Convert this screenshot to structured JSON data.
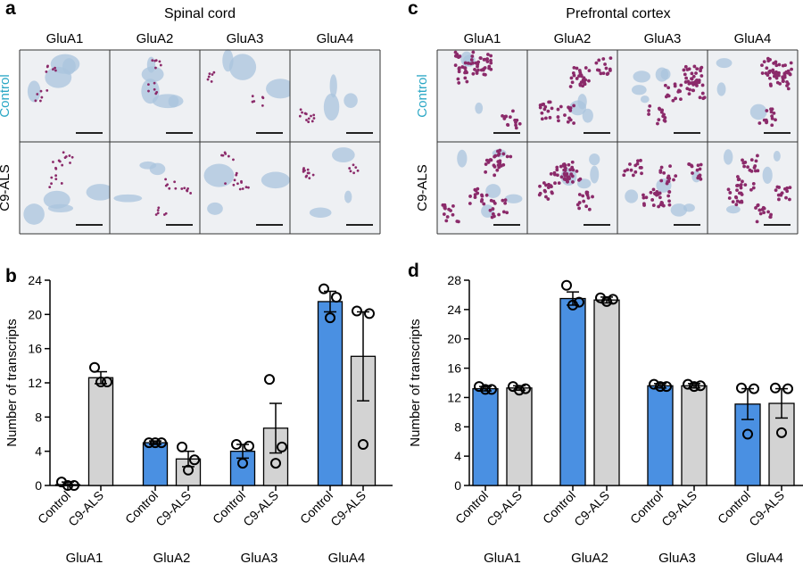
{
  "panels": {
    "a": {
      "letter": "a",
      "title": "Spinal cord",
      "columns": [
        "GluA1",
        "GluA2",
        "GluA3",
        "GluA4"
      ],
      "rows": [
        {
          "label": "Control",
          "color": "#2aa7c5"
        },
        {
          "label": "C9-ALS",
          "color": "#000000"
        }
      ]
    },
    "c": {
      "letter": "c",
      "title": "Prefrontal cortex",
      "columns": [
        "GluA1",
        "GluA2",
        "GluA3",
        "GluA4"
      ],
      "rows": [
        {
          "label": "Control",
          "color": "#2aa7c5"
        },
        {
          "label": "C9-ALS",
          "color": "#000000"
        }
      ]
    },
    "b": {
      "letter": "b"
    },
    "d": {
      "letter": "d"
    }
  },
  "colors": {
    "control_bar": "#4a90e2",
    "c9_bar": "#d3d3d3",
    "tissue_bg": "#eef0f3",
    "nucleus": "#a9c4dd",
    "rna_dot": "#8b2a6a",
    "grid_border": "#333333"
  },
  "chart_data": [
    {
      "id": "b",
      "type": "bar",
      "title": "",
      "ylabel": "Number of transcripts",
      "ylim": [
        0,
        24
      ],
      "yticks": [
        0,
        4,
        8,
        12,
        16,
        20,
        24
      ],
      "categories": [
        "GluA1",
        "GluA2",
        "GluA3",
        "GluA4"
      ],
      "conditions": [
        "Control",
        "C9-ALS"
      ],
      "series": [
        {
          "name": "Control",
          "values": [
            0.1,
            5.0,
            4.0,
            21.5
          ],
          "sem": [
            0.3,
            0.2,
            0.8,
            1.2
          ],
          "points": [
            [
              0.4,
              0.0,
              0.0
            ],
            [
              5.0,
              5.0,
              5.0
            ],
            [
              4.8,
              4.6,
              2.6
            ],
            [
              23.0,
              22.0,
              19.6
            ]
          ]
        },
        {
          "name": "C9-ALS",
          "values": [
            12.6,
            3.1,
            6.7,
            15.1
          ],
          "sem": [
            0.7,
            0.9,
            2.9,
            5.2
          ],
          "points": [
            [
              13.8,
              12.1,
              12.1
            ],
            [
              4.5,
              3.0,
              1.8
            ],
            [
              12.4,
              4.5,
              2.6
            ],
            [
              20.4,
              20.1,
              4.8
            ]
          ]
        }
      ]
    },
    {
      "id": "d",
      "type": "bar",
      "title": "",
      "ylabel": "Number of transcripts",
      "ylim": [
        0,
        28
      ],
      "yticks": [
        0,
        4,
        8,
        12,
        16,
        20,
        24,
        28
      ],
      "categories": [
        "GluA1",
        "GluA2",
        "GluA3",
        "GluA4"
      ],
      "conditions": [
        "Control",
        "C9-ALS"
      ],
      "series": [
        {
          "name": "Control",
          "values": [
            13.2,
            25.5,
            13.6,
            11.1
          ],
          "sem": [
            0.3,
            0.9,
            0.3,
            2.1
          ],
          "points": [
            [
              13.5,
              13.1,
              13.1
            ],
            [
              27.3,
              25.0,
              24.6
            ],
            [
              13.8,
              13.5,
              13.5
            ],
            [
              13.3,
              13.2,
              7.0
            ]
          ]
        },
        {
          "name": "C9-ALS",
          "values": [
            13.3,
            25.3,
            13.6,
            11.2
          ],
          "sem": [
            0.3,
            0.4,
            0.3,
            2.0
          ],
          "points": [
            [
              13.5,
              13.2,
              13.0
            ],
            [
              25.6,
              25.4,
              25.1
            ],
            [
              13.8,
              13.6,
              13.5
            ],
            [
              13.3,
              13.2,
              7.2
            ]
          ]
        }
      ]
    }
  ]
}
